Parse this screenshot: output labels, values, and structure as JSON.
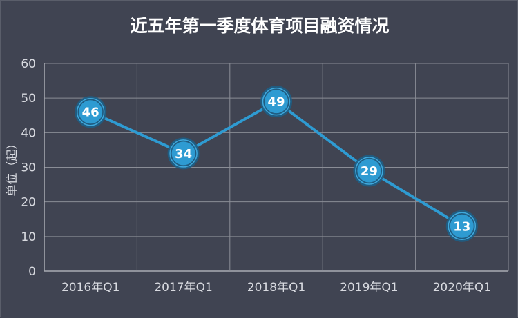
{
  "chart_data": {
    "type": "line",
    "title": "近五年第一季度体育项目融资情况",
    "ylabel": "单位（起）",
    "xlabel": "",
    "categories": [
      "2016年Q1",
      "2017年Q1",
      "2018年Q1",
      "2019年Q1",
      "2020年Q1"
    ],
    "series": [
      {
        "values": [
          46,
          34,
          49,
          29,
          13
        ]
      }
    ],
    "ylim": [
      0,
      60
    ],
    "yticks": [
      0,
      10,
      20,
      30,
      40,
      50,
      60
    ],
    "grid": true,
    "data_labels": true,
    "colors": {
      "background": "#404452",
      "line": "#2e9bd2",
      "marker_fill": "#2e9bd2",
      "marker_ring": "#1d5f86",
      "grid": "#8a8d96",
      "text": "#d8dae0",
      "title": "#ffffff"
    }
  }
}
